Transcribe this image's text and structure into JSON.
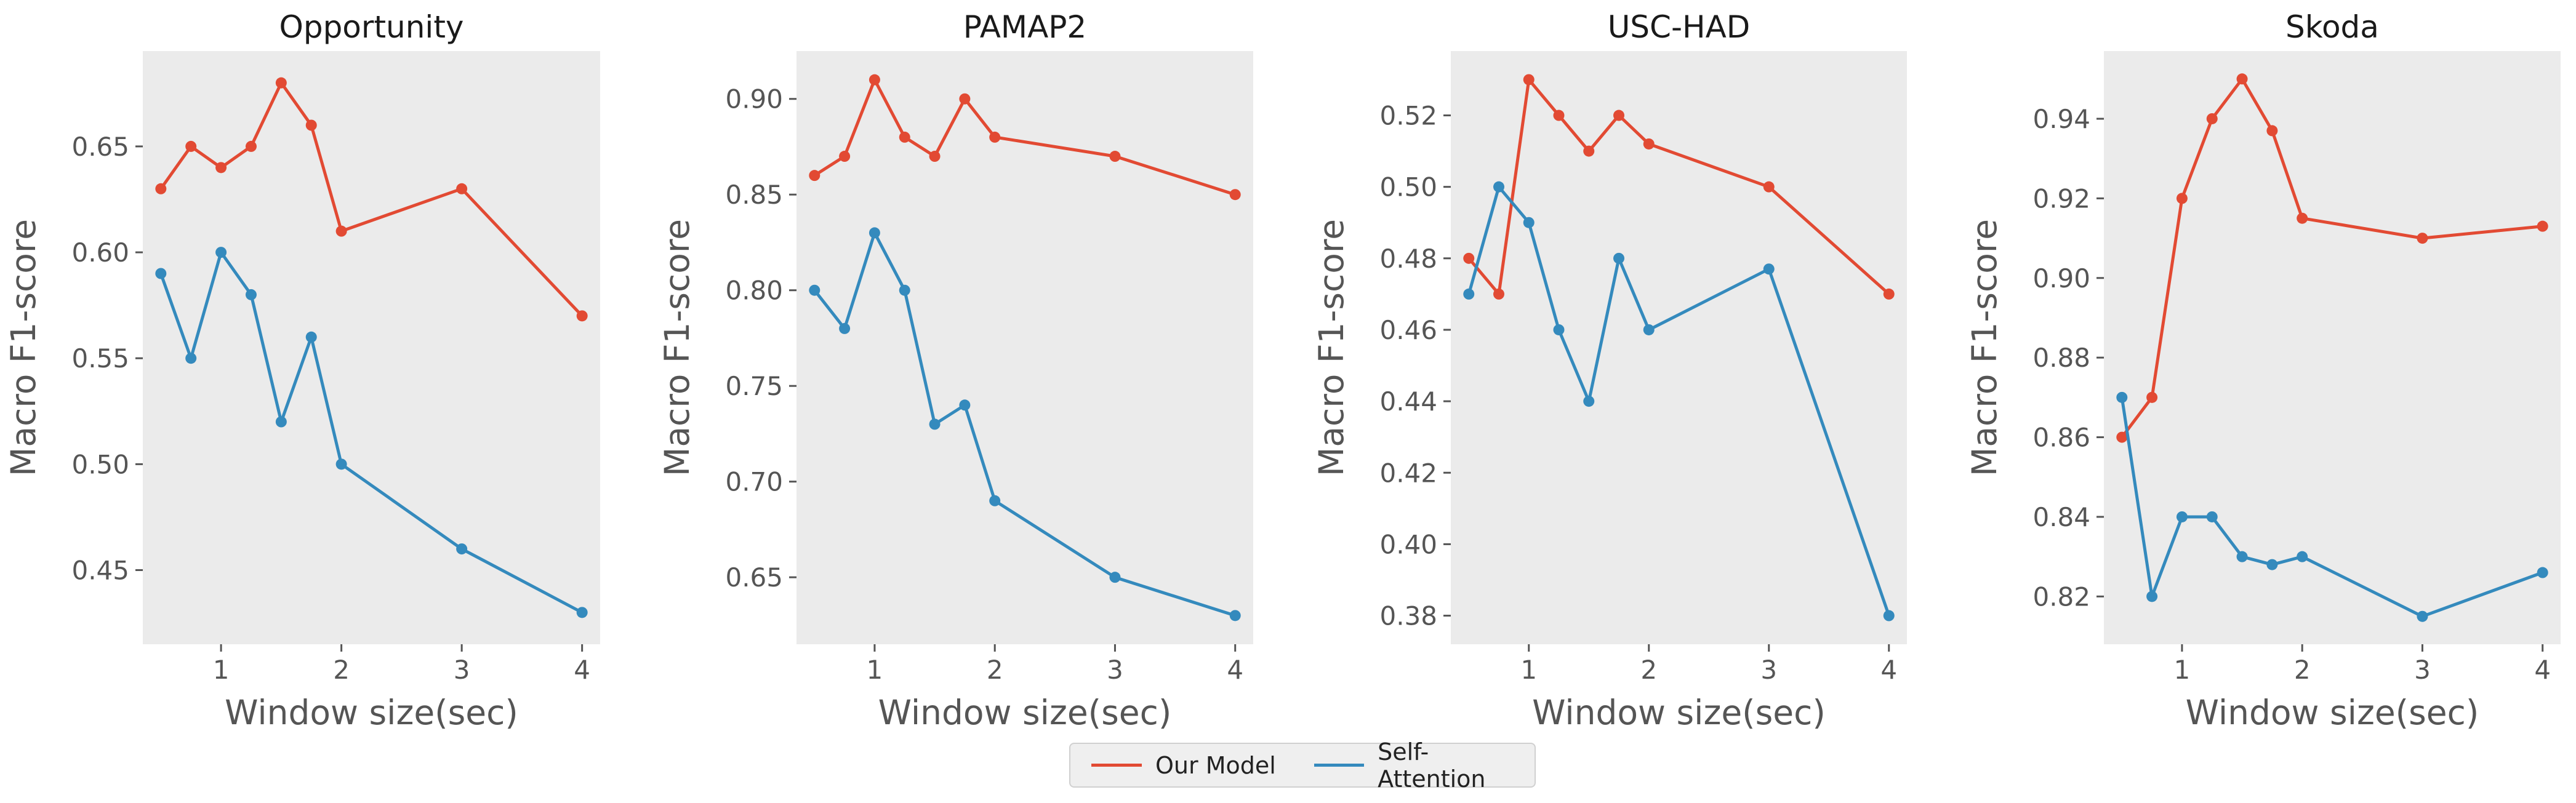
{
  "colors": {
    "our_model": "#e24a33",
    "self_attention": "#348abd",
    "plot_bg": "#ebebeb"
  },
  "legend": {
    "our_model": "Our Model",
    "self_attention": "Self-Attention"
  },
  "chart_data": [
    {
      "type": "line",
      "title": "Opportunity",
      "xlabel": "Window size(sec)",
      "ylabel": "Macro F1-score",
      "xlim": [
        0.35,
        4.15
      ],
      "ylim": [
        0.415,
        0.695
      ],
      "xticks": [
        1,
        2,
        3,
        4
      ],
      "yticks": [
        0.45,
        0.5,
        0.55,
        0.6,
        0.65
      ],
      "ytick_labels": [
        "0.45",
        "0.50",
        "0.55",
        "0.60",
        "0.65"
      ],
      "x": [
        0.5,
        0.75,
        1.0,
        1.25,
        1.5,
        1.75,
        2.0,
        3.0,
        4.0
      ],
      "series": [
        {
          "name": "Our Model",
          "values": [
            0.63,
            0.65,
            0.64,
            0.65,
            0.68,
            0.66,
            0.61,
            0.63,
            0.57
          ]
        },
        {
          "name": "Self-Attention",
          "values": [
            0.59,
            0.55,
            0.6,
            0.58,
            0.52,
            0.56,
            0.5,
            0.46,
            0.43
          ]
        }
      ]
    },
    {
      "type": "line",
      "title": "PAMAP2",
      "xlabel": "Window size(sec)",
      "ylabel": "Macro F1-score",
      "xlim": [
        0.35,
        4.15
      ],
      "ylim": [
        0.615,
        0.925
      ],
      "xticks": [
        1,
        2,
        3,
        4
      ],
      "yticks": [
        0.65,
        0.7,
        0.75,
        0.8,
        0.85,
        0.9
      ],
      "ytick_labels": [
        "0.65",
        "0.70",
        "0.75",
        "0.80",
        "0.85",
        "0.90"
      ],
      "x": [
        0.5,
        0.75,
        1.0,
        1.25,
        1.5,
        1.75,
        2.0,
        3.0,
        4.0
      ],
      "series": [
        {
          "name": "Our Model",
          "values": [
            0.86,
            0.87,
            0.91,
            0.88,
            0.87,
            0.9,
            0.88,
            0.87,
            0.85
          ]
        },
        {
          "name": "Self-Attention",
          "values": [
            0.8,
            0.78,
            0.83,
            0.8,
            0.73,
            0.74,
            0.69,
            0.65,
            0.63
          ]
        }
      ]
    },
    {
      "type": "line",
      "title": "USC-HAD",
      "xlabel": "Window size(sec)",
      "ylabel": "Macro F1-score",
      "xlim": [
        0.35,
        4.15
      ],
      "ylim": [
        0.372,
        0.538
      ],
      "xticks": [
        1,
        2,
        3,
        4
      ],
      "yticks": [
        0.38,
        0.4,
        0.42,
        0.44,
        0.46,
        0.48,
        0.5,
        0.52
      ],
      "ytick_labels": [
        "0.38",
        "0.40",
        "0.42",
        "0.44",
        "0.46",
        "0.48",
        "0.50",
        "0.52"
      ],
      "x": [
        0.5,
        0.75,
        1.0,
        1.25,
        1.5,
        1.75,
        2.0,
        3.0,
        4.0
      ],
      "series": [
        {
          "name": "Our Model",
          "values": [
            0.48,
            0.47,
            0.53,
            0.52,
            0.51,
            0.52,
            0.512,
            0.5,
            0.47
          ]
        },
        {
          "name": "Self-Attention",
          "values": [
            0.47,
            0.5,
            0.49,
            0.46,
            0.44,
            0.48,
            0.46,
            0.477,
            0.38
          ]
        }
      ]
    },
    {
      "type": "line",
      "title": "Skoda",
      "xlabel": "Window size(sec)",
      "ylabel": "Macro F1-score",
      "xlim": [
        0.35,
        4.15
      ],
      "ylim": [
        0.808,
        0.957
      ],
      "xticks": [
        1,
        2,
        3,
        4
      ],
      "yticks": [
        0.82,
        0.84,
        0.86,
        0.88,
        0.9,
        0.92,
        0.94
      ],
      "ytick_labels": [
        "0.82",
        "0.84",
        "0.86",
        "0.88",
        "0.90",
        "0.92",
        "0.94"
      ],
      "x": [
        0.5,
        0.75,
        1.0,
        1.25,
        1.5,
        1.75,
        2.0,
        3.0,
        4.0
      ],
      "series": [
        {
          "name": "Our Model",
          "values": [
            0.86,
            0.87,
            0.92,
            0.94,
            0.95,
            0.937,
            0.915,
            0.91,
            0.913
          ]
        },
        {
          "name": "Self-Attention",
          "values": [
            0.87,
            0.82,
            0.84,
            0.84,
            0.83,
            0.828,
            0.83,
            0.815,
            0.826
          ]
        }
      ]
    }
  ]
}
